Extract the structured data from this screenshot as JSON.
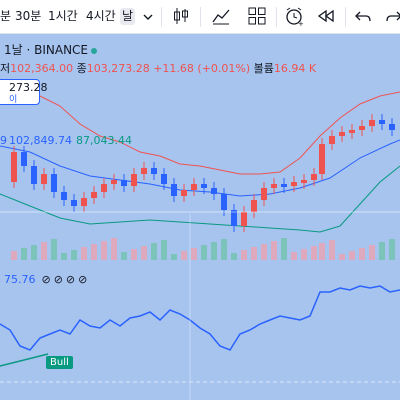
{
  "toolbar": {
    "timeframes": [
      "분",
      "30분",
      "1시간",
      "4시간",
      "날"
    ],
    "active_timeframe": "날",
    "icons": [
      "candles-icon",
      "indicators-icon",
      "templates-icon",
      "alert-icon",
      "replay-icon",
      "undo-icon",
      "redo-icon"
    ]
  },
  "symbol": {
    "title": "1날 · BINANCE",
    "status_color": "#26a69a"
  },
  "ohlc": {
    "low_label": "저",
    "low": "102,364.00",
    "close_label": "종",
    "close": "103,273.28",
    "change": "+11.68 (+0.01%)",
    "volume_label": "볼륨",
    "volume": "16.94 K"
  },
  "price_tag": {
    "price": "273.28",
    "sub": "이"
  },
  "bollinger": {
    "v1": "9",
    "v2": "102,849.74",
    "v3": "87,043.44"
  },
  "rsi": {
    "value": "75.76",
    "icons": "⊘⊘⊘⊘",
    "signal": "Bull"
  },
  "colors": {
    "up": "#ef5350",
    "down": "#2962ff",
    "bb_upper": "#ef5350",
    "bb_mid": "#2962ff",
    "bb_lower": "#089981",
    "rsi": "#2962ff",
    "bg": "#a7c4ef"
  }
}
